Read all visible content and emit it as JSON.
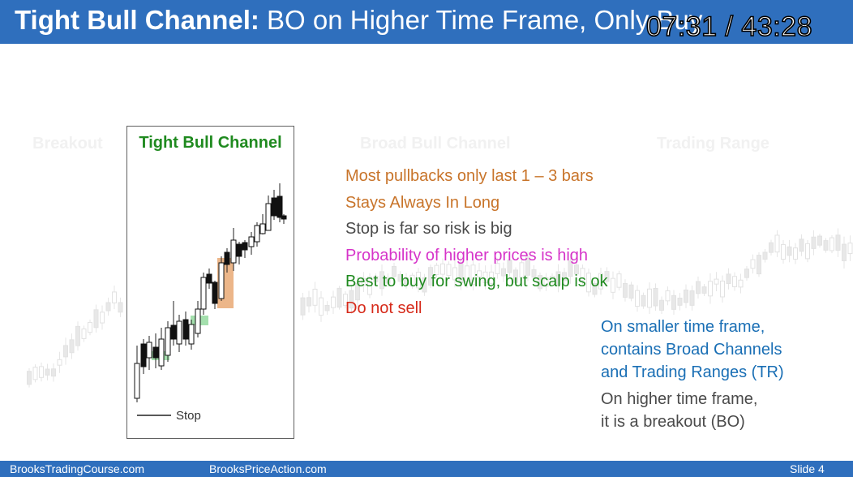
{
  "slide": {
    "title_bold": "Tight Bull Channel:",
    "title_rest": " BO on Higher Time Frame, Only Buy",
    "timestamp": "07:31 / 43:28",
    "background_labels": [
      "Breakout",
      "Broad Bull Channel",
      "Trading Range"
    ],
    "panel": {
      "title": "Tight Bull Channel",
      "stop_label": "Stop"
    },
    "bullets": [
      {
        "text": "Most pullbacks only last 1 – 3 bars",
        "color": "#c8742a"
      },
      {
        "text": "Stays Always In Long",
        "color": "#c8742a"
      },
      {
        "text": "Stop is far so risk is big",
        "color": "#4a4a4a"
      },
      {
        "text": "Probability of higher prices is high",
        "color": "#d633c9"
      },
      {
        "text": "Best to buy for swing, but scalp is ok",
        "color": "#1f8a1f"
      },
      {
        "text": "Do not sell",
        "color": "#d62a1a"
      }
    ],
    "note_smaller": [
      "On smaller time frame,",
      "contains Broad Channels",
      "and Trading Ranges (TR)"
    ],
    "note_higher": [
      "On higher time frame,",
      "it is a breakout (BO)"
    ],
    "footer": {
      "left": "BrooksTradingCourse.com",
      "center": "BrooksPriceAction.com",
      "right": "Slide  4"
    },
    "colors": {
      "header_blue": "#2f6fbd",
      "highlight_orange": "#e9a974",
      "highlight_green": "#7ed28a"
    }
  }
}
